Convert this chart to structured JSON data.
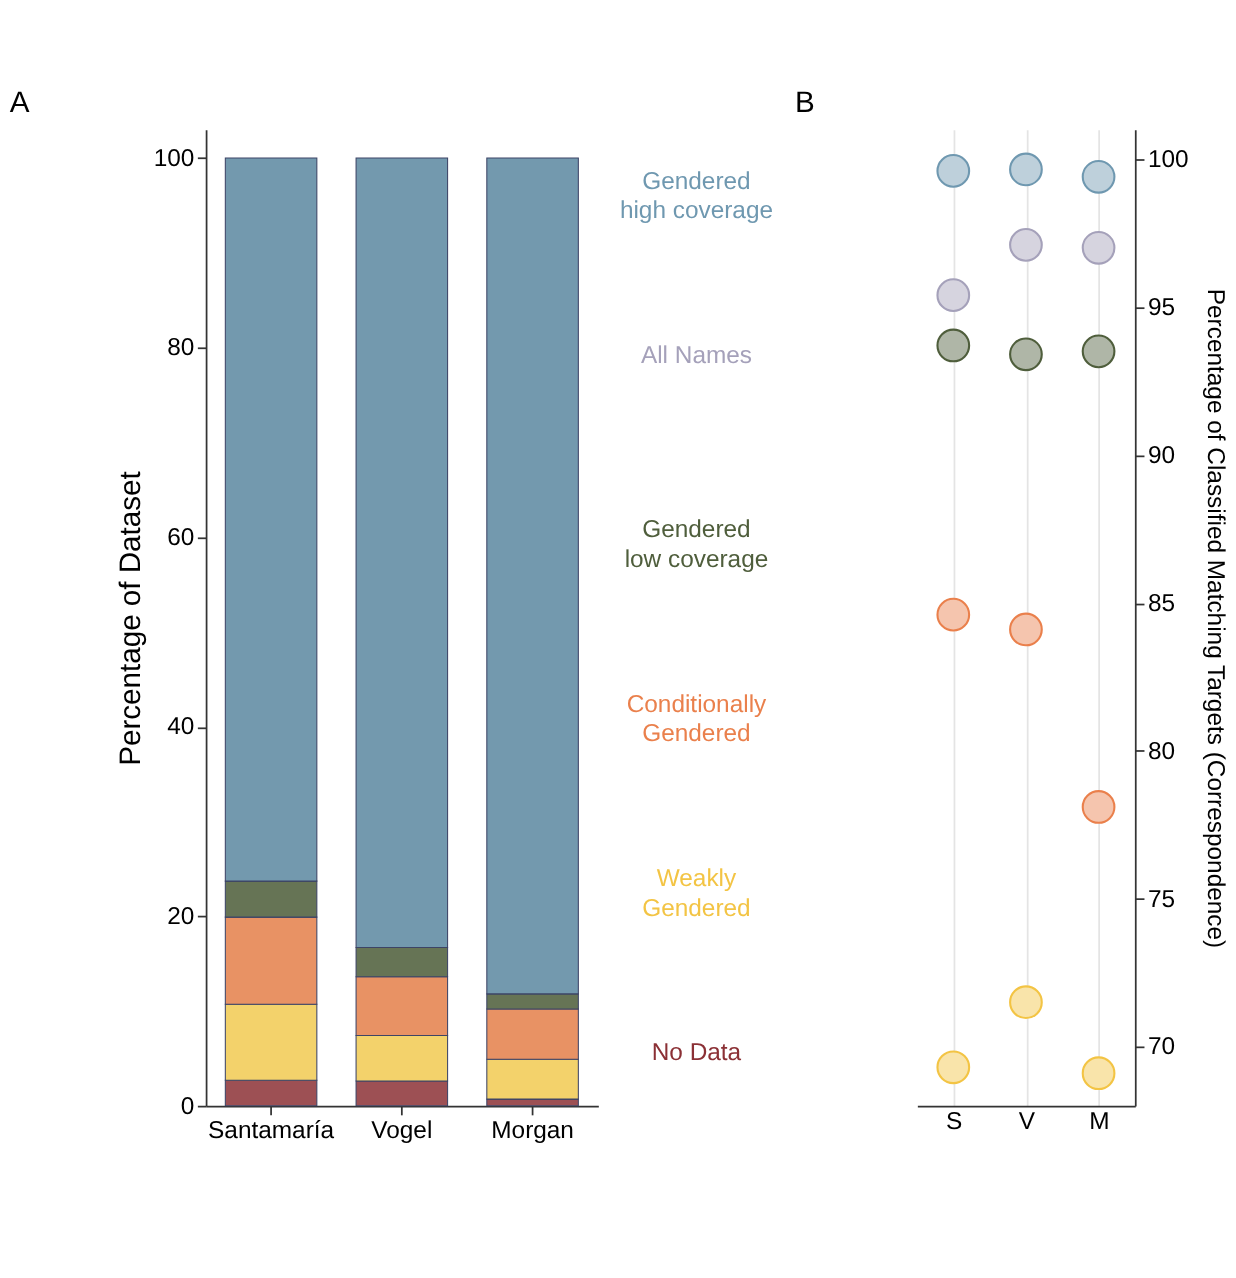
{
  "chart_data": [
    {
      "type": "bar",
      "title": "A",
      "ylabel": "Percentage of Dataset",
      "categories": [
        "Santamaría",
        "Vogel",
        "Morgan"
      ],
      "stacked": true,
      "ylim": [
        0,
        103
      ],
      "yticks": [
        0,
        20,
        40,
        60,
        80,
        100
      ],
      "grid": false,
      "series": [
        {
          "color": "#9d5054",
          "values": [
            2.7,
            2.6,
            0.7
          ]
        },
        {
          "color": "#f3d26b",
          "values": [
            8.0,
            4.8,
            4.2
          ]
        },
        {
          "color": "#e89264",
          "values": [
            9.2,
            6.2,
            5.3
          ]
        },
        {
          "color": "#667455",
          "values": [
            3.8,
            3.1,
            1.6
          ]
        },
        {
          "color": "#7399ae",
          "values": [
            76.3,
            83.3,
            88.2
          ]
        }
      ]
    },
    {
      "type": "scatter",
      "title": "B",
      "ylabel": "Percentage of Classified Matching Targets (Correspondence)",
      "categories": [
        "S",
        "V",
        "M"
      ],
      "ylim": [
        68,
        101
      ],
      "yticks": [
        70,
        75,
        80,
        85,
        90,
        95,
        100
      ],
      "grid": "x",
      "legend": "left",
      "marker": "circle",
      "series": [
        {
          "name": "Gendered high coverage",
          "color": "#6f98b0",
          "values": [
            99.6,
            99.65,
            99.4
          ]
        },
        {
          "name": "All Names",
          "color": "#a5a1ba",
          "values": [
            95.4,
            97.1,
            97.0
          ]
        },
        {
          "name": "Gendered low coverage",
          "color": "#4f5e3c",
          "values": [
            93.7,
            93.4,
            93.5
          ]
        },
        {
          "name": "Conditionally Gendered",
          "color": "#ea804c",
          "values": [
            84.6,
            84.1,
            78.1
          ]
        },
        {
          "name": "Weakly Gendered",
          "color": "#f3c444",
          "values": [
            69.3,
            71.5,
            69.1
          ]
        },
        {
          "name": "No Data",
          "color": "#8b3035",
          "values": [
            null,
            null,
            null
          ]
        }
      ]
    }
  ]
}
